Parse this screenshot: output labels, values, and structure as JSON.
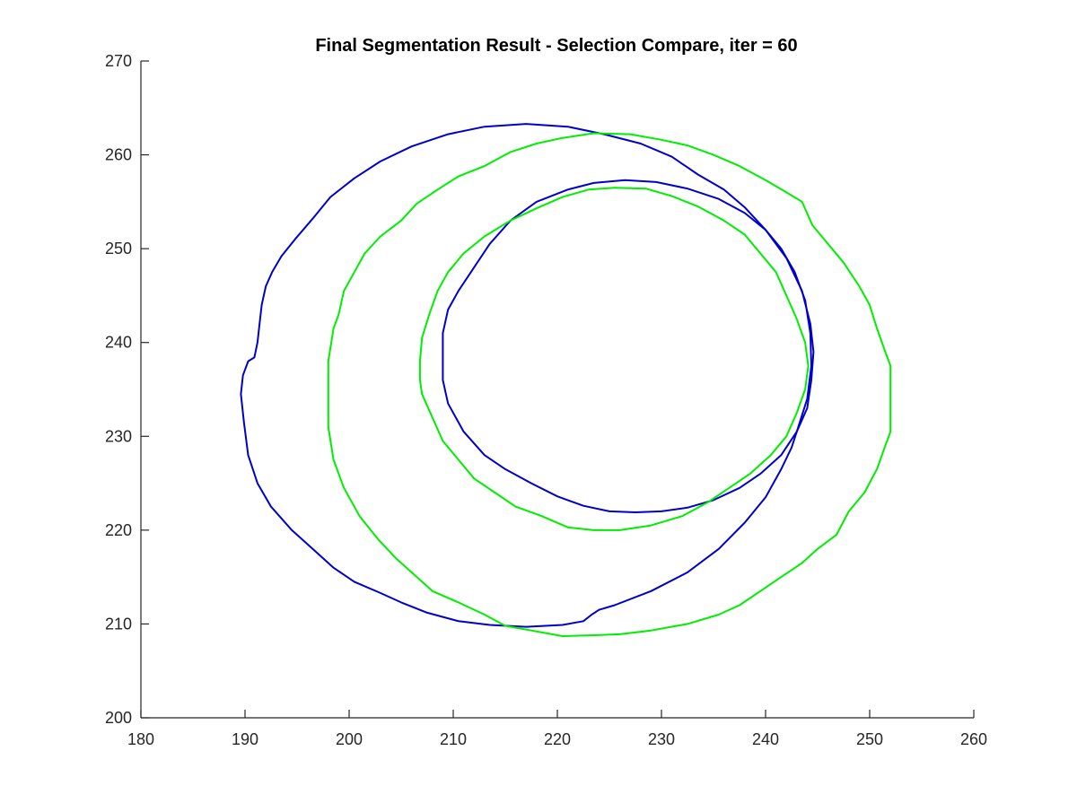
{
  "chart_data": {
    "type": "line",
    "title": "Final Segmentation Result - Selection Compare,  iter = 60",
    "xlabel": "",
    "ylabel": "",
    "xlim": [
      180,
      260
    ],
    "ylim": [
      200,
      270
    ],
    "xticks": [
      180,
      190,
      200,
      210,
      220,
      230,
      240,
      250,
      260
    ],
    "yticks": [
      200,
      210,
      220,
      230,
      240,
      250,
      260,
      270
    ],
    "grid": false,
    "series": [
      {
        "name": "outer-contour-blue",
        "color": "#0000cc",
        "closed": true,
        "points": [
          [
            189.8,
            236.5
          ],
          [
            190.3,
            238.0
          ],
          [
            190.9,
            238.4
          ],
          [
            191.2,
            240.0
          ],
          [
            191.4,
            242.0
          ],
          [
            191.6,
            244.0
          ],
          [
            192.0,
            246.0
          ],
          [
            192.6,
            247.5
          ],
          [
            193.5,
            249.2
          ],
          [
            194.8,
            251.0
          ],
          [
            196.5,
            253.2
          ],
          [
            198.2,
            255.5
          ],
          [
            200.5,
            257.5
          ],
          [
            203.0,
            259.3
          ],
          [
            206.0,
            260.9
          ],
          [
            209.5,
            262.2
          ],
          [
            213.0,
            263.0
          ],
          [
            217.0,
            263.3
          ],
          [
            221.0,
            263.0
          ],
          [
            224.5,
            262.2
          ],
          [
            228.0,
            261.2
          ],
          [
            231.0,
            259.8
          ],
          [
            233.5,
            257.9
          ],
          [
            236.0,
            256.3
          ],
          [
            238.0,
            254.4
          ],
          [
            240.0,
            252.0
          ],
          [
            242.0,
            249.0
          ],
          [
            243.5,
            245.5
          ],
          [
            244.3,
            242.0
          ],
          [
            244.6,
            239.0
          ],
          [
            244.4,
            236.0
          ],
          [
            244.0,
            233.0
          ],
          [
            243.0,
            230.5
          ],
          [
            242.5,
            228.8
          ],
          [
            241.5,
            226.5
          ],
          [
            240.0,
            223.5
          ],
          [
            238.0,
            220.8
          ],
          [
            235.5,
            218.0
          ],
          [
            232.5,
            215.5
          ],
          [
            229.0,
            213.5
          ],
          [
            225.5,
            212.0
          ],
          [
            224.0,
            211.5
          ],
          [
            223.3,
            211.0
          ],
          [
            222.5,
            210.3
          ],
          [
            220.5,
            209.9
          ],
          [
            217.0,
            209.7
          ],
          [
            213.5,
            209.9
          ],
          [
            210.5,
            210.3
          ],
          [
            207.5,
            211.2
          ],
          [
            205.0,
            212.3
          ],
          [
            203.0,
            213.3
          ],
          [
            200.5,
            214.5
          ],
          [
            198.5,
            216.0
          ],
          [
            196.5,
            218.0
          ],
          [
            194.5,
            220.0
          ],
          [
            192.5,
            222.5
          ],
          [
            191.2,
            225.0
          ],
          [
            190.3,
            228.0
          ],
          [
            189.9,
            231.5
          ],
          [
            189.6,
            234.5
          ],
          [
            189.8,
            236.5
          ]
        ]
      },
      {
        "name": "inner-contour-blue",
        "color": "#0000cc",
        "closed": true,
        "points": [
          [
            209.0,
            238.0
          ],
          [
            209.0,
            241.0
          ],
          [
            209.5,
            243.5
          ],
          [
            210.5,
            245.5
          ],
          [
            212.0,
            248.0
          ],
          [
            213.5,
            250.5
          ],
          [
            215.5,
            253.0
          ],
          [
            218.0,
            255.0
          ],
          [
            221.0,
            256.3
          ],
          [
            223.5,
            257.0
          ],
          [
            226.5,
            257.3
          ],
          [
            229.5,
            257.1
          ],
          [
            232.5,
            256.4
          ],
          [
            235.5,
            255.3
          ],
          [
            238.0,
            253.8
          ],
          [
            240.0,
            252.0
          ],
          [
            241.5,
            250.0
          ],
          [
            242.8,
            247.5
          ],
          [
            243.8,
            244.5
          ],
          [
            244.3,
            241.0
          ],
          [
            244.4,
            237.5
          ],
          [
            244.0,
            234.0
          ],
          [
            243.0,
            230.5
          ],
          [
            241.5,
            228.0
          ],
          [
            239.5,
            226.0
          ],
          [
            237.5,
            224.5
          ],
          [
            235.0,
            223.2
          ],
          [
            232.5,
            222.4
          ],
          [
            230.0,
            222.0
          ],
          [
            227.5,
            221.9
          ],
          [
            225.0,
            222.0
          ],
          [
            222.5,
            222.6
          ],
          [
            220.0,
            223.6
          ],
          [
            217.5,
            225.0
          ],
          [
            215.0,
            226.5
          ],
          [
            213.0,
            228.0
          ],
          [
            211.0,
            230.5
          ],
          [
            209.5,
            233.5
          ],
          [
            209.0,
            236.0
          ],
          [
            209.0,
            238.0
          ]
        ]
      },
      {
        "name": "outer-contour-green",
        "color": "#00ee00",
        "closed": true,
        "points": [
          [
            198.0,
            238.0
          ],
          [
            198.5,
            241.5
          ],
          [
            199.0,
            243.0
          ],
          [
            199.5,
            245.5
          ],
          [
            200.5,
            247.5
          ],
          [
            201.5,
            249.5
          ],
          [
            203.0,
            251.3
          ],
          [
            205.0,
            253.0
          ],
          [
            206.5,
            254.8
          ],
          [
            208.5,
            256.3
          ],
          [
            210.5,
            257.7
          ],
          [
            213.0,
            258.8
          ],
          [
            215.5,
            260.3
          ],
          [
            218.0,
            261.2
          ],
          [
            220.5,
            261.8
          ],
          [
            223.5,
            262.3
          ],
          [
            227.0,
            262.2
          ],
          [
            230.0,
            261.6
          ],
          [
            232.5,
            261.0
          ],
          [
            235.0,
            260.0
          ],
          [
            237.5,
            258.8
          ],
          [
            240.0,
            257.3
          ],
          [
            242.0,
            256.0
          ],
          [
            243.5,
            255.0
          ],
          [
            244.5,
            252.5
          ],
          [
            246.0,
            250.5
          ],
          [
            247.5,
            248.5
          ],
          [
            249.0,
            246.0
          ],
          [
            250.0,
            244.0
          ],
          [
            250.7,
            241.5
          ],
          [
            251.5,
            239.0
          ],
          [
            252.0,
            237.5
          ],
          [
            252.0,
            233.0
          ],
          [
            252.0,
            230.5
          ],
          [
            251.5,
            229.0
          ],
          [
            250.7,
            226.5
          ],
          [
            249.5,
            224.0
          ],
          [
            248.0,
            222.0
          ],
          [
            246.8,
            219.5
          ],
          [
            245.0,
            218.0
          ],
          [
            243.5,
            216.5
          ],
          [
            241.5,
            215.0
          ],
          [
            239.5,
            213.5
          ],
          [
            237.5,
            212.0
          ],
          [
            235.5,
            211.0
          ],
          [
            232.5,
            210.0
          ],
          [
            229.0,
            209.3
          ],
          [
            226.0,
            208.9
          ],
          [
            223.5,
            208.8
          ],
          [
            220.5,
            208.7
          ],
          [
            217.5,
            209.3
          ],
          [
            215.0,
            209.8
          ],
          [
            213.0,
            211.0
          ],
          [
            210.5,
            212.3
          ],
          [
            208.0,
            213.5
          ],
          [
            206.0,
            215.5
          ],
          [
            204.5,
            217.0
          ],
          [
            202.8,
            219.0
          ],
          [
            201.0,
            221.5
          ],
          [
            199.5,
            224.5
          ],
          [
            198.5,
            227.5
          ],
          [
            198.0,
            231.0
          ],
          [
            198.0,
            235.0
          ],
          [
            198.0,
            238.0
          ]
        ]
      },
      {
        "name": "inner-contour-green",
        "color": "#00ee00",
        "closed": true,
        "points": [
          [
            206.8,
            238.0
          ],
          [
            207.0,
            240.5
          ],
          [
            207.7,
            243.0
          ],
          [
            208.5,
            245.5
          ],
          [
            209.5,
            247.5
          ],
          [
            211.0,
            249.5
          ],
          [
            213.0,
            251.3
          ],
          [
            215.5,
            253.0
          ],
          [
            218.0,
            254.3
          ],
          [
            220.5,
            255.5
          ],
          [
            223.0,
            256.3
          ],
          [
            225.5,
            256.5
          ],
          [
            228.5,
            256.4
          ],
          [
            231.0,
            255.6
          ],
          [
            233.5,
            254.5
          ],
          [
            236.0,
            253.0
          ],
          [
            238.0,
            251.5
          ],
          [
            239.5,
            249.5
          ],
          [
            241.0,
            247.5
          ],
          [
            242.0,
            245.0
          ],
          [
            243.0,
            242.5
          ],
          [
            243.8,
            240.0
          ],
          [
            244.1,
            237.5
          ],
          [
            243.8,
            235.0
          ],
          [
            243.0,
            232.5
          ],
          [
            242.0,
            230.0
          ],
          [
            240.5,
            228.0
          ],
          [
            238.5,
            226.0
          ],
          [
            236.5,
            224.5
          ],
          [
            234.5,
            223.0
          ],
          [
            232.0,
            221.5
          ],
          [
            229.0,
            220.5
          ],
          [
            226.0,
            220.0
          ],
          [
            223.5,
            220.0
          ],
          [
            221.0,
            220.3
          ],
          [
            218.5,
            221.5
          ],
          [
            216.0,
            222.5
          ],
          [
            214.0,
            224.0
          ],
          [
            212.0,
            225.5
          ],
          [
            210.5,
            227.5
          ],
          [
            209.0,
            229.5
          ],
          [
            208.0,
            232.0
          ],
          [
            207.0,
            234.5
          ],
          [
            206.8,
            236.0
          ],
          [
            206.8,
            238.0
          ]
        ]
      }
    ]
  }
}
